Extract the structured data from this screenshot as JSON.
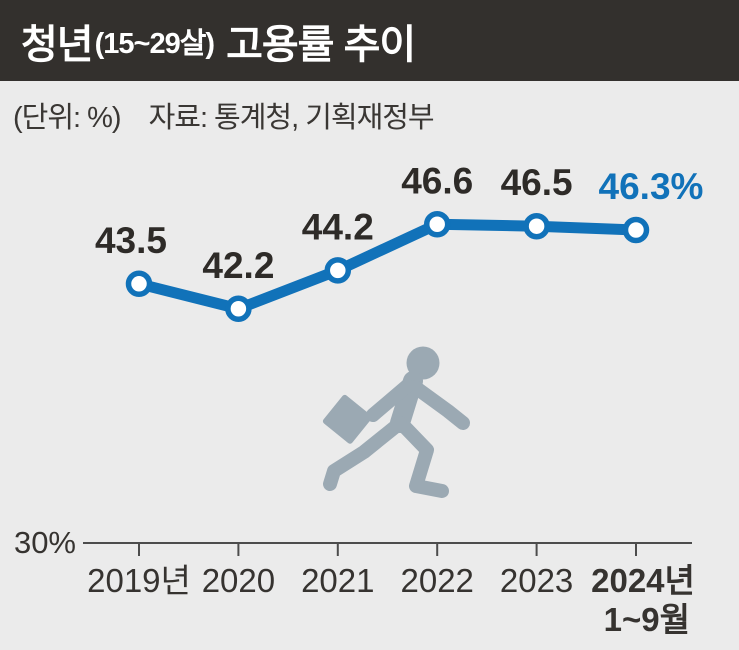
{
  "header": {
    "title_main": "청년",
    "title_paren": "(15~29살)",
    "title_rest": "고용률 추이",
    "bg_color": "#33302d",
    "text_color": "#ffffff"
  },
  "subtitle": {
    "unit": "(단위: %)",
    "source": "자료: 통계청, 기획재정부"
  },
  "icons": {
    "running_person": "running-person-with-briefcase",
    "color": "#9ba9b3"
  },
  "chart_data": {
    "type": "line",
    "title": "청년(15~29살) 고용률 추이",
    "unit": "%",
    "source": "통계청, 기획재정부",
    "categories": [
      "2019년",
      "2020",
      "2021",
      "2022",
      "2023",
      "2024년"
    ],
    "last_category_subline": "1~9월",
    "values": [
      43.5,
      42.2,
      44.2,
      46.6,
      46.5,
      46.3
    ],
    "point_labels": [
      "43.5",
      "42.2",
      "44.2",
      "46.6",
      "46.5",
      "46.3%"
    ],
    "baseline_label": "30%",
    "ylim_bottom": 30,
    "xlabel": "",
    "ylabel": "%",
    "grid": false,
    "legend": false,
    "line_color": "#1172b9",
    "point_fill": "#ffffff",
    "label_color": "#2e2b28",
    "highlight_label_color": "#1172b9",
    "axis_color": "#4c4c4c",
    "axis_text_color": "#363330"
  }
}
